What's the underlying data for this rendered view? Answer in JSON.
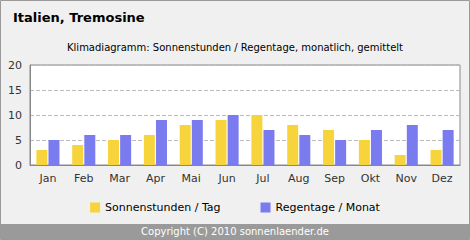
{
  "chart_data": {
    "type": "bar",
    "title": "Italien, Tremosine",
    "subtitle": "Klimadiagramm: Sonnenstunden / Regentage, monatlich, gemittelt",
    "annotations": [
      "Copyright (C) 2010 sonnenlaender.de"
    ],
    "categories": [
      "Jan",
      "Feb",
      "Mar",
      "Apr",
      "Mai",
      "Jun",
      "Jul",
      "Aug",
      "Sep",
      "Okt",
      "Nov",
      "Dez"
    ],
    "series": [
      {
        "name": "Sonnenstunden / Tag",
        "color": "#f8d43c",
        "values": [
          3,
          4,
          5,
          6,
          8,
          9,
          10,
          8,
          7,
          5,
          2,
          3
        ]
      },
      {
        "name": "Regentage / Monat",
        "color": "#7b7bf0",
        "values": [
          5,
          6,
          6,
          9,
          9,
          10,
          7,
          6,
          5,
          7,
          8,
          7
        ]
      }
    ],
    "ylim": [
      0,
      20
    ],
    "yticks": [
      0,
      5,
      10,
      15,
      20
    ],
    "grid": true,
    "legend": "bottom"
  }
}
